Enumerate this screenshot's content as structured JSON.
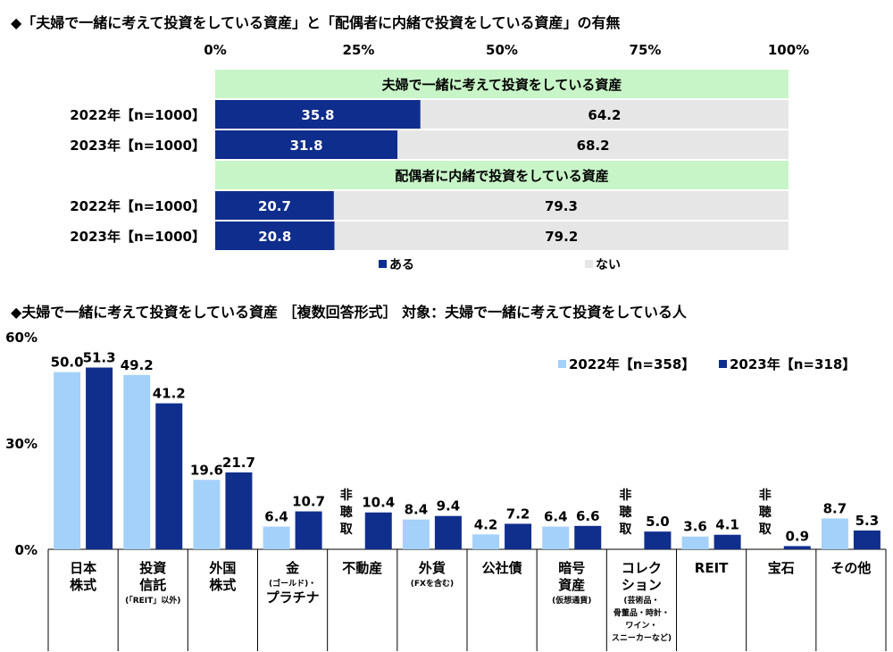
{
  "colors": {
    "yes": "#0f2d8c",
    "no": "#e6e6e6",
    "section": "#c8f5c8",
    "y2022": "#a3d1fa",
    "y2023": "#102e8c"
  },
  "chart_data": [
    {
      "type": "bar",
      "orientation": "horizontal-stacked-100",
      "title": "◆「夫婦で一緒に考えて投資をしている資産」と「配偶者に内緒で投資をしている資産」の有無",
      "xticks": [
        "0%",
        "25%",
        "50%",
        "75%",
        "100%"
      ],
      "xlim": [
        0,
        100
      ],
      "legend": {
        "placement": "bottom",
        "entries": [
          "ある",
          "ない"
        ]
      },
      "groups": [
        {
          "label": "夫婦で一緒に考えて投資をしている資産",
          "rows": [
            {
              "label": "2022年【n=1000】",
              "values": [
                35.8,
                64.2
              ]
            },
            {
              "label": "2023年【n=1000】",
              "values": [
                31.8,
                68.2
              ]
            }
          ]
        },
        {
          "label": "配偶者に内緒で投資をしている資産",
          "rows": [
            {
              "label": "2022年【n=1000】",
              "values": [
                20.7,
                79.3
              ]
            },
            {
              "label": "2023年【n=1000】",
              "values": [
                20.8,
                79.2
              ]
            }
          ]
        }
      ]
    },
    {
      "type": "bar",
      "orientation": "vertical-grouped",
      "title": "◆夫婦で一緒に考えて投資をしている資産 ［複数回答形式］ 対象：夫婦で一緒に考えて投資をしている人",
      "yticks": [
        "60%",
        "30%",
        "0%"
      ],
      "ylim": [
        0,
        60
      ],
      "legend": {
        "placement": "top-right"
      },
      "series": [
        {
          "name": "2022年【n=358】",
          "values": [
            50.0,
            49.2,
            19.6,
            6.4,
            null,
            8.4,
            4.2,
            6.4,
            null,
            3.6,
            null,
            8.7
          ],
          "labels": [
            "50.0",
            "49.2",
            "19.6",
            "6.4",
            "",
            "8.4",
            "4.2",
            "6.4",
            "",
            "3.6",
            "",
            "8.7"
          ]
        },
        {
          "name": "2023年【n=318】",
          "values": [
            51.3,
            41.2,
            21.7,
            10.7,
            10.4,
            9.4,
            7.2,
            6.6,
            5.0,
            4.1,
            0.9,
            5.3
          ],
          "labels": [
            "51.3",
            "41.2",
            "21.7",
            "10.7",
            "10.4",
            "9.4",
            "7.2",
            "6.6",
            "5.0",
            "4.1",
            "0.9",
            "5.3"
          ]
        }
      ],
      "not_surveyed_label": "非聴取",
      "categories": [
        {
          "lines": [
            "日本",
            "株式"
          ],
          "note": []
        },
        {
          "lines": [
            "投資",
            "信託"
          ],
          "note": [
            "(「REIT」以外)"
          ]
        },
        {
          "lines": [
            "外国",
            "株式"
          ],
          "note": []
        },
        {
          "lines": [
            "金"
          ],
          "note": [
            "(ゴールド)・"
          ],
          "lines2": [
            "プラチナ"
          ]
        },
        {
          "lines": [
            "不動産"
          ],
          "note": []
        },
        {
          "lines": [
            "外貨"
          ],
          "note": [
            "(FXを含む)"
          ]
        },
        {
          "lines": [
            "公社債"
          ],
          "note": []
        },
        {
          "lines": [
            "暗号",
            "資産"
          ],
          "note": [
            "(仮想通貨)"
          ]
        },
        {
          "lines": [
            "コレク",
            "ション"
          ],
          "note": [
            "(芸術品・",
            "骨董品・時計・",
            "ワイン・",
            "スニーカーなど)"
          ]
        },
        {
          "lines": [
            "REIT"
          ],
          "note": []
        },
        {
          "lines": [
            "宝石"
          ],
          "note": []
        },
        {
          "lines": [
            "その他"
          ],
          "note": []
        }
      ]
    }
  ]
}
